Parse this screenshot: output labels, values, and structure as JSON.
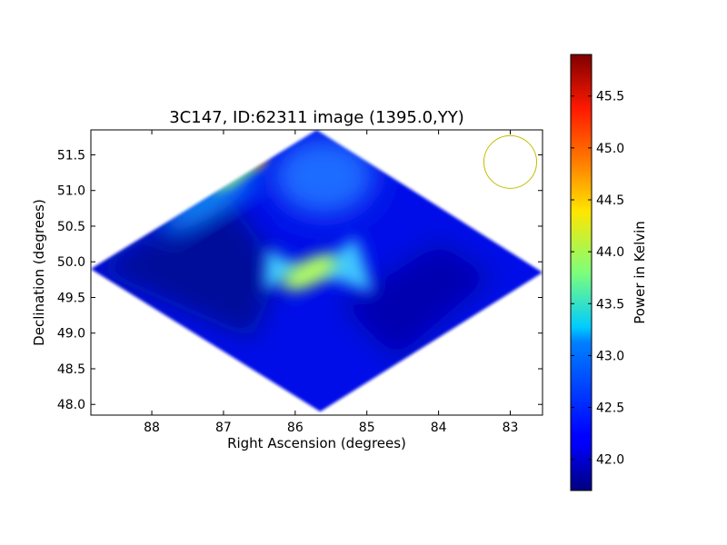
{
  "chart_data": {
    "type": "heatmap",
    "title": "3C147, ID:62311 image (1395.0,YY)",
    "xlabel": "Right Ascension (degrees)",
    "ylabel": "Declination (degrees)",
    "xlim": [
      88.85,
      82.55
    ],
    "ylim": [
      47.85,
      51.85
    ],
    "xticks": [
      "88",
      "87",
      "86",
      "85",
      "84",
      "83"
    ],
    "yticks": [
      "48.0",
      "48.5",
      "49.0",
      "49.5",
      "50.0",
      "50.5",
      "51.0",
      "51.5"
    ],
    "colorbar": {
      "label": "Power in Kelvin",
      "range": [
        41.7,
        45.9
      ],
      "ticks": [
        "42.0",
        "42.5",
        "43.0",
        "43.5",
        "44.0",
        "44.5",
        "45.0",
        "45.5"
      ],
      "colormap": "jet"
    },
    "map_region": {
      "shape": "diamond",
      "vertices": [
        [
          85.7,
          51.85
        ],
        [
          82.55,
          49.85
        ],
        [
          85.65,
          47.9
        ],
        [
          88.85,
          49.9
        ]
      ],
      "background_level": 41.95
    },
    "features": [
      {
        "ra": 85.8,
        "dec": 49.85,
        "peak": 44.0,
        "shape": "bowtie"
      },
      {
        "ra": 86.5,
        "dec": 51.4,
        "peak": 45.7,
        "shape": "filament"
      },
      {
        "ra": 85.7,
        "dec": 51.4,
        "peak": 42.7,
        "shape": "diffuse"
      },
      {
        "ra": 87.4,
        "dec": 50.9,
        "peak": 43.2,
        "shape": "diffuse"
      }
    ],
    "beam_circle": {
      "ra": 83.0,
      "dec": 51.4,
      "color": "#bfbf00"
    }
  }
}
